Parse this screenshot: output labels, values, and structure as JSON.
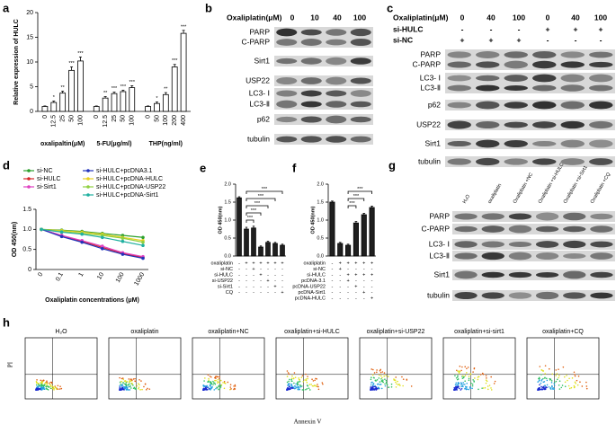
{
  "chart_data": [
    {
      "panel": "a",
      "type": "bar",
      "ylabel": "Relative expression of HULC",
      "ylim": [
        0,
        20
      ],
      "yticks": [
        0,
        5,
        10,
        15,
        20
      ],
      "color": "#ffffff",
      "groups": [
        {
          "label": "oxalipaltin(μM)",
          "categories": [
            "0",
            "12.5",
            "25",
            "50",
            "100"
          ],
          "values": [
            1,
            1.8,
            3.7,
            8.3,
            10.2
          ],
          "errors": [
            0.1,
            0.3,
            0.4,
            0.7,
            0.8
          ],
          "significance": [
            null,
            "*",
            "**",
            "***",
            "***"
          ]
        },
        {
          "label": "5-FU(μg/ml)",
          "categories": [
            "0",
            "12.5",
            "25",
            "50",
            "100"
          ],
          "values": [
            1,
            2.7,
            3.6,
            4.0,
            4.8
          ],
          "errors": [
            0.1,
            0.3,
            0.3,
            0.3,
            0.4
          ],
          "significance": [
            null,
            "**",
            "***",
            "***",
            "***"
          ]
        },
        {
          "label": "THP(ng/ml)",
          "categories": [
            "0",
            "50",
            "100",
            "200",
            "400"
          ],
          "values": [
            1,
            1.6,
            3.4,
            9.0,
            15.8
          ],
          "errors": [
            0.1,
            0.3,
            0.4,
            0.5,
            0.6
          ],
          "significance": [
            null,
            "*",
            "**",
            "***",
            "***"
          ]
        }
      ]
    },
    {
      "panel": "d",
      "type": "line",
      "ylabel": "OD 450(nm)",
      "xlabel": "Oxaliplatin concentrations (μM)",
      "categories": [
        "0",
        "0.1",
        "1",
        "10",
        "100",
        "1000"
      ],
      "ylim": [
        0,
        1.5
      ],
      "yticks": [
        0,
        0.5,
        {
          "value": 1,
          "label": "1.0"
        },
        1.5
      ],
      "series": [
        {
          "name": "si-NC",
          "color": "#2ca02c",
          "values": [
            1.0,
            0.98,
            0.95,
            0.9,
            0.85,
            0.8
          ]
        },
        {
          "name": "si-HULC",
          "color": "#d62728",
          "values": [
            1.0,
            0.85,
            0.7,
            0.55,
            0.4,
            0.3
          ]
        },
        {
          "name": "si-Sirt1",
          "color": "#e040c0",
          "values": [
            1.0,
            0.85,
            0.72,
            0.58,
            0.42,
            0.32
          ]
        },
        {
          "name": "si-HULC+pcDNA3.1",
          "color": "#2233bb",
          "values": [
            1.0,
            0.82,
            0.68,
            0.52,
            0.38,
            0.28
          ]
        },
        {
          "name": "si-HULC+pcDNA-HULC",
          "color": "#e8d020",
          "values": [
            1.0,
            0.97,
            0.93,
            0.88,
            0.8,
            0.72
          ]
        },
        {
          "name": "si-HULC+pcDNA-USP22",
          "color": "#90d040",
          "values": [
            1.0,
            0.95,
            0.9,
            0.85,
            0.78,
            0.68
          ]
        },
        {
          "name": "si-HULC+pcDNA-Sirt1",
          "color": "#20b0a0",
          "values": [
            1.0,
            0.93,
            0.88,
            0.8,
            0.7,
            0.6
          ]
        }
      ]
    },
    {
      "panel": "e",
      "type": "bar",
      "ylabel": "OD 450(nm)",
      "ylim": [
        0,
        2
      ],
      "yticks": [
        {
          "value": 0,
          "label": "0.0"
        },
        0.5,
        {
          "value": 1,
          "label": "1.0"
        },
        1.5,
        {
          "value": 2,
          "label": "2.0"
        }
      ],
      "color": "#1f1f1f",
      "values": [
        1.62,
        0.75,
        0.78,
        0.25,
        0.38,
        0.35,
        0.3
      ],
      "errors": [
        0.03,
        0.05,
        0.05,
        0.03,
        0.03,
        0.03,
        0.03
      ],
      "conditions": [
        {
          "label": "oxaliplatin",
          "signs": [
            "-",
            "+",
            "+",
            "+",
            "+",
            "+",
            "+"
          ]
        },
        {
          "label": "si-NC",
          "signs": [
            "-",
            "-",
            "+",
            "-",
            "-",
            "-",
            "-"
          ]
        },
        {
          "label": "si-HULC",
          "signs": [
            "-",
            "-",
            "-",
            "+",
            "-",
            "-",
            "-"
          ]
        },
        {
          "label": "si-USP22",
          "signs": [
            "-",
            "-",
            "-",
            "-",
            "+",
            "-",
            "-"
          ]
        },
        {
          "label": "si-Sirt1",
          "signs": [
            "-",
            "-",
            "-",
            "-",
            "-",
            "+",
            "-"
          ]
        },
        {
          "label": "CQ",
          "signs": [
            "-",
            "-",
            "-",
            "-",
            "-",
            "-",
            "+"
          ]
        }
      ],
      "comparisons": [
        "***",
        "***",
        "***",
        "***",
        "***"
      ]
    },
    {
      "panel": "f",
      "type": "bar",
      "ylabel": "OD 450(nm)",
      "ylim": [
        0,
        2
      ],
      "yticks": [
        {
          "value": 0,
          "label": "0.0"
        },
        0.5,
        {
          "value": 1,
          "label": "1.0"
        },
        1.5,
        {
          "value": 2,
          "label": "2.0"
        }
      ],
      "color": "#1f1f1f",
      "values": [
        1.5,
        0.35,
        0.3,
        0.92,
        1.15,
        1.35
      ],
      "errors": [
        0.03,
        0.03,
        0.03,
        0.04,
        0.04,
        0.04
      ],
      "conditions": [
        {
          "label": "oxaliplatin",
          "signs": [
            "-",
            "+",
            "+",
            "+",
            "+",
            "+"
          ]
        },
        {
          "label": "si-NC",
          "signs": [
            "-",
            "+",
            "-",
            "-",
            "-",
            "-"
          ]
        },
        {
          "label": "si-HULC",
          "signs": [
            "-",
            "-",
            "+",
            "+",
            "+",
            "+"
          ]
        },
        {
          "label": "pcDNA-3.1",
          "signs": [
            "-",
            "-",
            "+",
            "-",
            "-",
            "-"
          ]
        },
        {
          "label": "pcDNA-USP22",
          "signs": [
            "-",
            "-",
            "-",
            "+",
            "-",
            "-"
          ]
        },
        {
          "label": "pcDNA-Sirt1",
          "signs": [
            "-",
            "-",
            "-",
            "-",
            "+",
            "-"
          ]
        },
        {
          "label": "pcDNA-HULC",
          "signs": [
            "-",
            "-",
            "-",
            "-",
            "-",
            "+"
          ]
        }
      ],
      "comparisons": [
        "***",
        "***",
        "***"
      ]
    }
  ],
  "blots": [
    {
      "panel": "b",
      "headers": [
        {
          "label": "Oxaliplatin(μM)",
          "values": [
            "0",
            "10",
            "40",
            "100"
          ]
        }
      ],
      "rows": [
        "PARP",
        "C-PARP",
        "Sirt1",
        "USP22",
        "LC3- Ⅰ",
        "LC3-Ⅱ",
        "p62",
        "tubulin"
      ]
    },
    {
      "panel": "c",
      "headers": [
        {
          "label": "Oxaliplatin(μM)",
          "values": [
            "0",
            "40",
            "100",
            "0",
            "40",
            "100"
          ]
        },
        {
          "label": "si-HULC",
          "values": [
            "-",
            "-",
            "-",
            "+",
            "+",
            "+"
          ]
        },
        {
          "label": "si-NC",
          "values": [
            "+",
            "+",
            "+",
            "-",
            "-",
            "-"
          ]
        }
      ],
      "rows": [
        "PARP",
        "C-PARP",
        "LC3- Ⅰ",
        "LC3-Ⅱ",
        "p62",
        "USP22",
        "Sirt1",
        "tubulin"
      ]
    },
    {
      "panel": "g",
      "columns": [
        "H₂O",
        "oxaliplatin",
        "Oxaliplatin +NC",
        "Oxaliplatin +si-HULC",
        "Oxaliplatin +si-Sirt1",
        "Oxaliplatin +CQ"
      ],
      "rows": [
        "PARP",
        "C-PARP",
        "LC3- Ⅰ",
        "LC3-Ⅱ",
        "Sirt1",
        "tubulin"
      ]
    }
  ],
  "flow": {
    "panel": "h",
    "xlabel": "Annexin V",
    "ylabel": "PI",
    "titles": [
      "H₂O",
      "oxaliplatin",
      "oxaliplatin+NC",
      "oxaliplatin+si-HULC",
      "oxaliplatin+si-USP22",
      "oxaliplatin+si-sirt1",
      "oxaliplatin+CQ"
    ]
  }
}
